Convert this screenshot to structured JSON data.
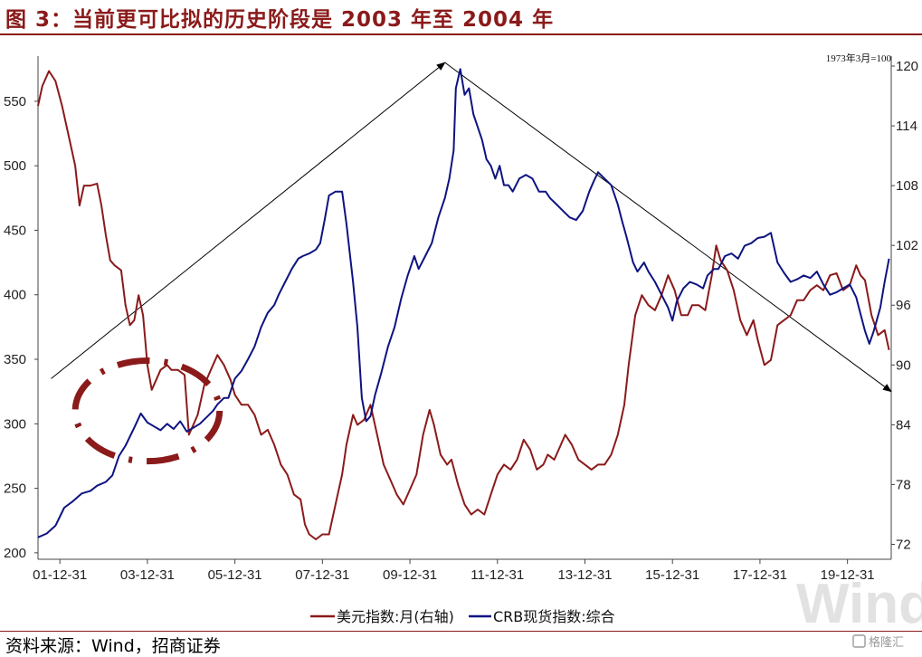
{
  "header": {
    "title": "图 3：当前更可比拟的历史阶段是 2003 年至 2004 年"
  },
  "footer": {
    "source": "资料来源：Wind，招商证券",
    "logo_text": "格隆汇"
  },
  "watermark_text": "Wind",
  "colors": {
    "title": "#8b1a1a",
    "usd_series": "#8b1a1a",
    "crb_series": "#0d1380",
    "annotation": "#000000",
    "ellipse": "#8b1a1a"
  },
  "chart_data": {
    "type": "line",
    "unit_note": "1973年3月=100",
    "x_ticks": [
      "01-12-31",
      "03-12-31",
      "05-12-31",
      "07-12-31",
      "09-12-31",
      "11-12-31",
      "13-12-31",
      "15-12-31",
      "17-12-31",
      "19-12-31"
    ],
    "y_left": {
      "ticks": [
        200,
        250,
        300,
        350,
        400,
        450,
        500,
        550
      ],
      "range": [
        195,
        585
      ]
    },
    "y_right": {
      "ticks": [
        72,
        78,
        84,
        90,
        96,
        102,
        108,
        114,
        120
      ],
      "range": [
        70.5,
        121
      ]
    },
    "x_range": [
      2001.5,
      2021.0
    ],
    "grid": false,
    "legend_position": "bottom-center",
    "series": [
      {
        "name": "美元指数:月(右轴)",
        "axis": "right",
        "points": [
          [
            2001.5,
            116
          ],
          [
            2001.6,
            118
          ],
          [
            2001.75,
            119.5
          ],
          [
            2001.9,
            118.5
          ],
          [
            2002.05,
            116
          ],
          [
            2002.2,
            113
          ],
          [
            2002.35,
            110
          ],
          [
            2002.45,
            106
          ],
          [
            2002.55,
            108
          ],
          [
            2002.7,
            108
          ],
          [
            2002.85,
            108.2
          ],
          [
            2002.95,
            106
          ],
          [
            2003.05,
            103
          ],
          [
            2003.15,
            100.5
          ],
          [
            2003.25,
            100
          ],
          [
            2003.4,
            99.5
          ],
          [
            2003.5,
            96
          ],
          [
            2003.6,
            94
          ],
          [
            2003.7,
            94.5
          ],
          [
            2003.8,
            97
          ],
          [
            2003.9,
            95
          ],
          [
            2004.0,
            90
          ],
          [
            2004.1,
            87.5
          ],
          [
            2004.2,
            88.5
          ],
          [
            2004.3,
            89.5
          ],
          [
            2004.45,
            90
          ],
          [
            2004.55,
            89.5
          ],
          [
            2004.7,
            89.5
          ],
          [
            2004.85,
            89
          ],
          [
            2004.95,
            83
          ],
          [
            2005.05,
            84
          ],
          [
            2005.15,
            85
          ],
          [
            2005.3,
            88
          ],
          [
            2005.45,
            89.5
          ],
          [
            2005.6,
            91
          ],
          [
            2005.75,
            90
          ],
          [
            2005.9,
            88.5
          ],
          [
            2006.0,
            87
          ],
          [
            2006.15,
            86
          ],
          [
            2006.3,
            86
          ],
          [
            2006.45,
            85
          ],
          [
            2006.6,
            83
          ],
          [
            2006.75,
            83.5
          ],
          [
            2006.9,
            82
          ],
          [
            2007.05,
            80
          ],
          [
            2007.2,
            79
          ],
          [
            2007.35,
            77
          ],
          [
            2007.5,
            76.5
          ],
          [
            2007.6,
            74
          ],
          [
            2007.7,
            73
          ],
          [
            2007.85,
            72.5
          ],
          [
            2008.0,
            73
          ],
          [
            2008.15,
            73
          ],
          [
            2008.3,
            76
          ],
          [
            2008.45,
            79
          ],
          [
            2008.55,
            82
          ],
          [
            2008.7,
            85
          ],
          [
            2008.8,
            84
          ],
          [
            2008.95,
            84.5
          ],
          [
            2009.1,
            86
          ],
          [
            2009.25,
            83
          ],
          [
            2009.4,
            80
          ],
          [
            2009.55,
            78.5
          ],
          [
            2009.7,
            77
          ],
          [
            2009.85,
            76
          ],
          [
            2010.0,
            77.5
          ],
          [
            2010.15,
            79
          ],
          [
            2010.3,
            83
          ],
          [
            2010.45,
            85.5
          ],
          [
            2010.55,
            84
          ],
          [
            2010.7,
            81
          ],
          [
            2010.85,
            80
          ],
          [
            2010.95,
            80.5
          ],
          [
            2011.1,
            78
          ],
          [
            2011.25,
            76
          ],
          [
            2011.4,
            75
          ],
          [
            2011.55,
            75.5
          ],
          [
            2011.7,
            75
          ],
          [
            2011.85,
            77
          ],
          [
            2012.0,
            79
          ],
          [
            2012.15,
            80
          ],
          [
            2012.3,
            79.5
          ],
          [
            2012.45,
            80.5
          ],
          [
            2012.6,
            82.5
          ],
          [
            2012.75,
            81.5
          ],
          [
            2012.9,
            79.5
          ],
          [
            2013.05,
            80
          ],
          [
            2013.15,
            81
          ],
          [
            2013.3,
            80.5
          ],
          [
            2013.45,
            82
          ],
          [
            2013.55,
            83
          ],
          [
            2013.7,
            82
          ],
          [
            2013.85,
            80.5
          ],
          [
            2014.0,
            80
          ],
          [
            2014.15,
            79.5
          ],
          [
            2014.3,
            80
          ],
          [
            2014.45,
            80
          ],
          [
            2014.6,
            81
          ],
          [
            2014.75,
            83
          ],
          [
            2014.9,
            86
          ],
          [
            2015.0,
            90
          ],
          [
            2015.15,
            95
          ],
          [
            2015.3,
            97
          ],
          [
            2015.45,
            96
          ],
          [
            2015.6,
            95.5
          ],
          [
            2015.75,
            97
          ],
          [
            2015.9,
            99
          ],
          [
            2016.05,
            97.5
          ],
          [
            2016.2,
            95
          ],
          [
            2016.35,
            95
          ],
          [
            2016.45,
            96
          ],
          [
            2016.6,
            96
          ],
          [
            2016.75,
            95.5
          ],
          [
            2016.9,
            99
          ],
          [
            2017.0,
            102
          ],
          [
            2017.1,
            100.5
          ],
          [
            2017.25,
            99.5
          ],
          [
            2017.4,
            97.5
          ],
          [
            2017.55,
            94.5
          ],
          [
            2017.7,
            93
          ],
          [
            2017.85,
            94.5
          ],
          [
            2017.95,
            92.5
          ],
          [
            2018.1,
            90
          ],
          [
            2018.25,
            90.5
          ],
          [
            2018.4,
            94
          ],
          [
            2018.55,
            94.5
          ],
          [
            2018.7,
            95
          ],
          [
            2018.85,
            96.5
          ],
          [
            2019.0,
            96.5
          ],
          [
            2019.15,
            97.5
          ],
          [
            2019.3,
            98
          ],
          [
            2019.45,
            97.5
          ],
          [
            2019.6,
            99
          ],
          [
            2019.75,
            99.2
          ],
          [
            2019.9,
            97.5
          ],
          [
            2020.05,
            98
          ],
          [
            2020.2,
            100
          ],
          [
            2020.3,
            99
          ],
          [
            2020.4,
            98.5
          ],
          [
            2020.55,
            95
          ],
          [
            2020.7,
            93
          ],
          [
            2020.85,
            93.5
          ],
          [
            2020.95,
            91.5
          ]
        ]
      },
      {
        "name": "CRB现货指数:综合",
        "axis": "left",
        "points": [
          [
            2001.5,
            212
          ],
          [
            2001.7,
            215
          ],
          [
            2001.9,
            221
          ],
          [
            2002.1,
            235
          ],
          [
            2002.3,
            240
          ],
          [
            2002.5,
            246
          ],
          [
            2002.7,
            248
          ],
          [
            2002.85,
            252
          ],
          [
            2003.05,
            255
          ],
          [
            2003.2,
            260
          ],
          [
            2003.35,
            275
          ],
          [
            2003.5,
            283
          ],
          [
            2003.7,
            297
          ],
          [
            2003.85,
            308
          ],
          [
            2004.0,
            301
          ],
          [
            2004.15,
            298
          ],
          [
            2004.3,
            295
          ],
          [
            2004.45,
            300
          ],
          [
            2004.6,
            296
          ],
          [
            2004.75,
            302
          ],
          [
            2004.9,
            294
          ],
          [
            2005.05,
            297
          ],
          [
            2005.2,
            300
          ],
          [
            2005.35,
            305
          ],
          [
            2005.5,
            310
          ],
          [
            2005.6,
            315
          ],
          [
            2005.75,
            320
          ],
          [
            2005.85,
            320
          ],
          [
            2006.0,
            335
          ],
          [
            2006.15,
            341
          ],
          [
            2006.3,
            350
          ],
          [
            2006.45,
            360
          ],
          [
            2006.6,
            375
          ],
          [
            2006.75,
            386
          ],
          [
            2006.9,
            392
          ],
          [
            2007.0,
            400
          ],
          [
            2007.15,
            410
          ],
          [
            2007.3,
            420
          ],
          [
            2007.45,
            428
          ],
          [
            2007.55,
            430
          ],
          [
            2007.7,
            432
          ],
          [
            2007.85,
            435
          ],
          [
            2007.95,
            440
          ],
          [
            2008.05,
            458
          ],
          [
            2008.15,
            477
          ],
          [
            2008.3,
            480
          ],
          [
            2008.45,
            480
          ],
          [
            2008.55,
            455
          ],
          [
            2008.7,
            410
          ],
          [
            2008.8,
            375
          ],
          [
            2008.9,
            320
          ],
          [
            2009.0,
            302
          ],
          [
            2009.1,
            306
          ],
          [
            2009.2,
            322
          ],
          [
            2009.35,
            340
          ],
          [
            2009.5,
            360
          ],
          [
            2009.65,
            375
          ],
          [
            2009.8,
            397
          ],
          [
            2009.95,
            415
          ],
          [
            2010.1,
            430
          ],
          [
            2010.2,
            420
          ],
          [
            2010.35,
            430
          ],
          [
            2010.5,
            440
          ],
          [
            2010.65,
            460
          ],
          [
            2010.8,
            475
          ],
          [
            2010.9,
            490
          ],
          [
            2011.0,
            512
          ],
          [
            2011.05,
            560
          ],
          [
            2011.15,
            575
          ],
          [
            2011.25,
            555
          ],
          [
            2011.35,
            560
          ],
          [
            2011.45,
            540
          ],
          [
            2011.55,
            530
          ],
          [
            2011.65,
            520
          ],
          [
            2011.75,
            505
          ],
          [
            2011.85,
            500
          ],
          [
            2011.95,
            490
          ],
          [
            2012.05,
            500
          ],
          [
            2012.15,
            485
          ],
          [
            2012.25,
            485
          ],
          [
            2012.35,
            480
          ],
          [
            2012.5,
            490
          ],
          [
            2012.65,
            493
          ],
          [
            2012.8,
            490
          ],
          [
            2012.95,
            480
          ],
          [
            2013.1,
            480
          ],
          [
            2013.2,
            475
          ],
          [
            2013.35,
            470
          ],
          [
            2013.5,
            465
          ],
          [
            2013.65,
            460
          ],
          [
            2013.8,
            458
          ],
          [
            2013.95,
            465
          ],
          [
            2014.1,
            480
          ],
          [
            2014.2,
            488
          ],
          [
            2014.3,
            495
          ],
          [
            2014.45,
            490
          ],
          [
            2014.6,
            485
          ],
          [
            2014.75,
            470
          ],
          [
            2014.85,
            457
          ],
          [
            2014.95,
            445
          ],
          [
            2015.1,
            425
          ],
          [
            2015.2,
            418
          ],
          [
            2015.35,
            425
          ],
          [
            2015.45,
            418
          ],
          [
            2015.6,
            410
          ],
          [
            2015.75,
            400
          ],
          [
            2015.9,
            390
          ],
          [
            2016.0,
            380
          ],
          [
            2016.1,
            395
          ],
          [
            2016.25,
            405
          ],
          [
            2016.4,
            410
          ],
          [
            2016.55,
            408
          ],
          [
            2016.7,
            405
          ],
          [
            2016.8,
            415
          ],
          [
            2016.95,
            420
          ],
          [
            2017.05,
            420
          ],
          [
            2017.2,
            430
          ],
          [
            2017.35,
            432
          ],
          [
            2017.5,
            428
          ],
          [
            2017.65,
            438
          ],
          [
            2017.8,
            440
          ],
          [
            2017.95,
            444
          ],
          [
            2018.1,
            445
          ],
          [
            2018.25,
            448
          ],
          [
            2018.4,
            425
          ],
          [
            2018.55,
            417
          ],
          [
            2018.7,
            410
          ],
          [
            2018.85,
            412
          ],
          [
            2019.0,
            415
          ],
          [
            2019.15,
            413
          ],
          [
            2019.3,
            418
          ],
          [
            2019.45,
            408
          ],
          [
            2019.6,
            400
          ],
          [
            2019.75,
            402
          ],
          [
            2019.9,
            405
          ],
          [
            2020.05,
            408
          ],
          [
            2020.2,
            398
          ],
          [
            2020.3,
            385
          ],
          [
            2020.4,
            372
          ],
          [
            2020.5,
            362
          ],
          [
            2020.6,
            372
          ],
          [
            2020.75,
            390
          ],
          [
            2020.85,
            410
          ],
          [
            2020.95,
            428
          ]
        ]
      }
    ],
    "annotations": [
      {
        "type": "arrow",
        "axis": "left",
        "from": [
          2001.8,
          335
        ],
        "to": [
          2010.8,
          580
        ]
      },
      {
        "type": "arrow",
        "axis": "left",
        "from": [
          2010.8,
          580
        ],
        "to": [
          2021.0,
          325
        ]
      },
      {
        "type": "ellipse-dashed",
        "axis": "left",
        "cx": 2004.0,
        "cy": 310,
        "rx": 1.65,
        "ry": 39
      }
    ]
  }
}
